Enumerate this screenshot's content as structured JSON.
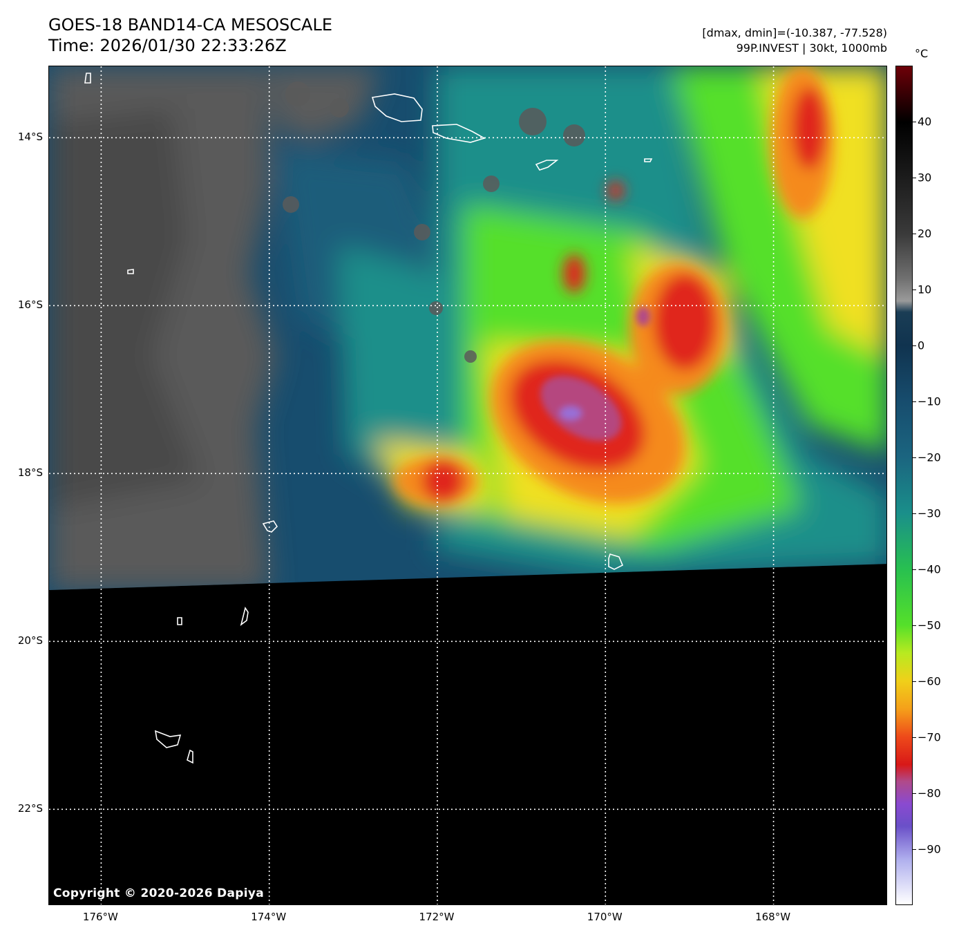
{
  "header": {
    "title": "GOES-18 BAND14-CA MESOSCALE",
    "time": "Time: 2026/01/30 22:33:26Z",
    "range": "[dmax, dmin]=(-10.387, -77.528)",
    "storm": "99P.INVEST | 30kt, 1000mb"
  },
  "map": {
    "lat_labels": [
      {
        "text": "14°S",
        "lat": -14
      },
      {
        "text": "16°S",
        "lat": -16
      },
      {
        "text": "18°S",
        "lat": -18
      },
      {
        "text": "20°S",
        "lat": -20
      },
      {
        "text": "22°S",
        "lat": -22
      }
    ],
    "lon_labels": [
      {
        "text": "176°W",
        "lon": -176
      },
      {
        "text": "174°W",
        "lon": -174
      },
      {
        "text": "172°W",
        "lon": -172
      },
      {
        "text": "170°W",
        "lon": -170
      },
      {
        "text": "168°W",
        "lon": -168
      }
    ],
    "extent": {
      "lon_min": -176.62,
      "lon_max": -166.64,
      "lat_max": -13.15,
      "lat_min": -23.15
    },
    "copyright": "Copyright © 2020-2026 Dapiya"
  },
  "colorbar": {
    "unit": "°C",
    "vmin": -100,
    "vmax": 50,
    "ticks": [
      40,
      30,
      20,
      10,
      0,
      -10,
      -20,
      -30,
      -40,
      -50,
      -60,
      -70,
      -80,
      -90
    ],
    "tick_labels": [
      "40",
      "30",
      "20",
      "10",
      "0",
      "−10",
      "−20",
      "−30",
      "−40",
      "−50",
      "−60",
      "−70",
      "−80",
      "−90"
    ]
  },
  "colors": {
    "warm_gray": "#5a5a5a",
    "ocean_blue": "#174d6e",
    "teal": "#1a8f8a",
    "green": "#55e02a",
    "yellow": "#f0e020",
    "orange": "#f58a1e",
    "red": "#e0281a",
    "purple": "#9870d8",
    "nodata": "#000000"
  }
}
